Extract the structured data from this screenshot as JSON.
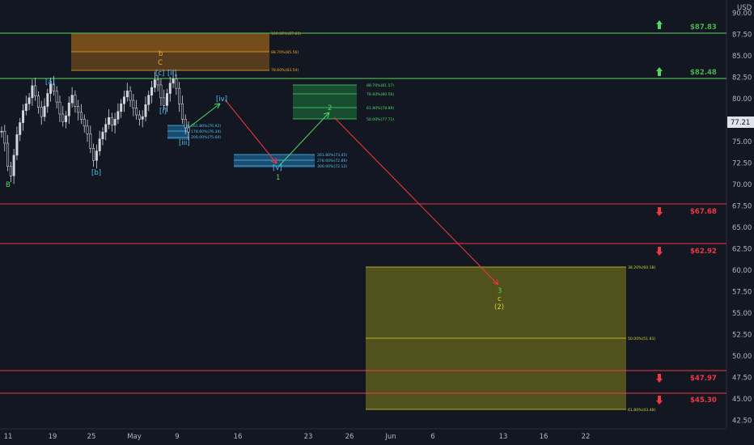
{
  "currency_label": "USD",
  "current_price": "77.21",
  "y_ticks": [
    "90.00",
    "87.50",
    "85.00",
    "82.50",
    "80.00",
    "77.50",
    "75.00",
    "72.50",
    "70.00",
    "67.50",
    "65.00",
    "62.50",
    "60.00",
    "57.50",
    "55.00",
    "52.50",
    "50.00",
    "47.50",
    "45.00",
    "42.50"
  ],
  "x_ticks": [
    "11",
    "19",
    "25",
    "May",
    "9",
    "16",
    "23",
    "26",
    "Jun",
    "6",
    "13",
    "16",
    "22"
  ],
  "chart_data": {
    "type": "candlestick",
    "title": "",
    "xlabel": "",
    "ylabel": "USD",
    "ylim": [
      41.5,
      91.5
    ],
    "y_axis_side": "right",
    "grid": false,
    "horizontal_levels": [
      {
        "label": "$87.83",
        "value": 87.83,
        "color": "#4caf50",
        "direction": "up"
      },
      {
        "label": "$82.48",
        "value": 82.48,
        "color": "#4caf50",
        "direction": "up"
      },
      {
        "label": "$67.68",
        "value": 67.68,
        "color": "#f23645",
        "direction": "down"
      },
      {
        "label": "$62.92",
        "value": 62.92,
        "color": "#f23645",
        "direction": "down"
      },
      {
        "label": "$47.97",
        "value": 47.97,
        "color": "#f23645",
        "direction": "down"
      },
      {
        "label": "$45.30",
        "value": 45.3,
        "color": "#f23645",
        "direction": "down"
      }
    ],
    "fib_zones": [
      {
        "color": "#f5a623",
        "levels": [
          "100.00%(87.83)",
          "88.70%(85.56)",
          "78.60%(83.54)"
        ]
      },
      {
        "color": "#4cd964",
        "levels": [
          "88.70%(81.57)",
          "78.60%(80.56)",
          "61.80%(78.89)",
          "50.00%(77.71)"
        ]
      },
      {
        "color": "#4fc3f7",
        "levels": [
          "161.80%(76.92)",
          "178.60%(76.34)",
          "200.00%(75.60)"
        ]
      },
      {
        "color": "#4fc3f7",
        "levels": [
          "261.80%(73.45)",
          "278.60%(72.86)",
          "300.00%(72.12)"
        ]
      },
      {
        "color": "#d4d42a",
        "levels": [
          "38.20%(60.18)",
          "50.00%(51.83)",
          "61.80%(43.48)"
        ]
      }
    ],
    "wave_labels": [
      {
        "text": "B",
        "color": "#4cd964"
      },
      {
        "text": "[a]",
        "color": "#4fc3f7"
      },
      {
        "text": "[b]",
        "color": "#4fc3f7"
      },
      {
        "text": "b",
        "color": "#f5a623"
      },
      {
        "text": "C",
        "color": "#f5a623"
      },
      {
        "text": "[c]",
        "color": "#4fc3f7"
      },
      {
        "text": "[ii]",
        "color": "#4fc3f7"
      },
      {
        "text": "[i]",
        "color": "#4fc3f7"
      },
      {
        "text": "[iii]",
        "color": "#4fc3f7"
      },
      {
        "text": "[iv]",
        "color": "#4fc3f7"
      },
      {
        "text": "[v]",
        "color": "#4fc3f7"
      },
      {
        "text": "1",
        "color": "#4cd964"
      },
      {
        "text": "2",
        "color": "#4cd964"
      },
      {
        "text": "3",
        "color": "#4cd964"
      },
      {
        "text": "c",
        "color": "#d4d42a"
      },
      {
        "text": "(2)",
        "color": "#d4d42a"
      }
    ],
    "projection_path": [
      {
        "from": "[iii]",
        "to": "[iv]",
        "color": "#4cd964"
      },
      {
        "from": "[iv]",
        "to": "[v]",
        "color": "#f23645"
      },
      {
        "from": "[v]",
        "to": "2",
        "color": "#4cd964"
      },
      {
        "from": "2",
        "to": "3",
        "color": "#f23645"
      }
    ],
    "price_series": [
      76.2,
      74.8,
      72.1,
      71.0,
      73.4,
      75.8,
      77.2,
      78.6,
      79.4,
      80.1,
      81.5,
      80.3,
      79.0,
      77.9,
      79.1,
      80.6,
      81.7,
      80.9,
      79.6,
      78.2,
      77.3,
      78.0,
      79.5,
      80.4,
      79.1,
      78.4,
      77.6,
      76.8,
      75.9,
      74.2,
      72.8,
      73.9,
      75.3,
      76.1,
      77.0,
      77.8,
      76.9,
      77.6,
      78.5,
      79.4,
      80.2,
      80.9,
      79.8,
      78.9,
      78.1,
      77.6,
      77.9,
      79.3,
      80.4,
      81.3,
      82.2,
      81.6,
      80.1,
      79.2,
      80.6,
      81.8,
      82.3,
      81.2,
      79.4,
      77.6,
      76.6,
      76.1
    ]
  }
}
